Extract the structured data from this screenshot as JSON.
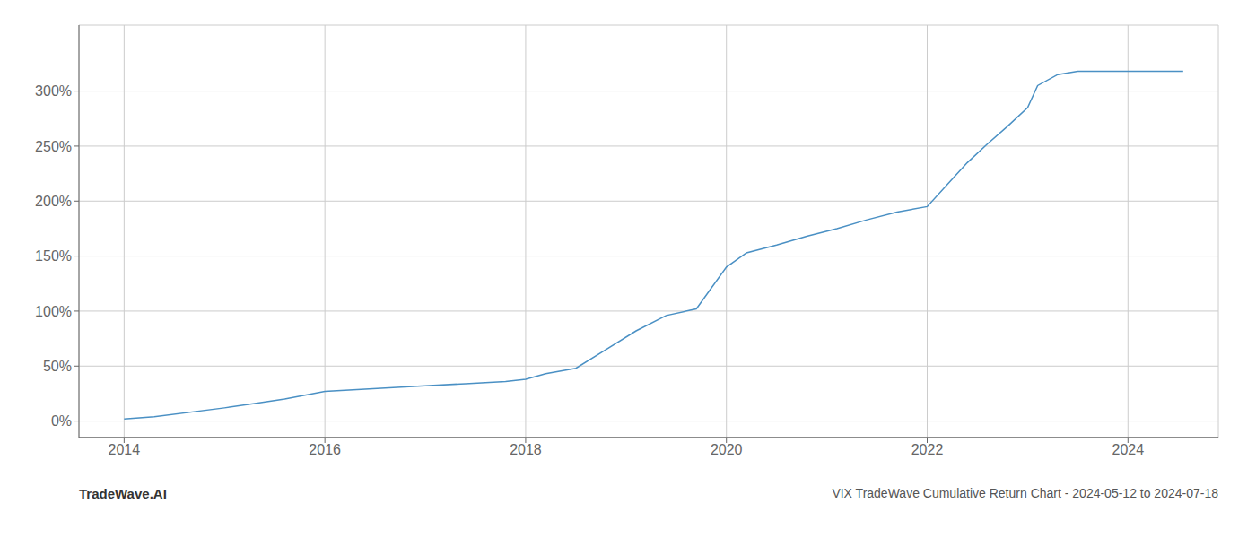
{
  "chart_data": {
    "type": "line",
    "title": "VIX TradeWave Cumulative Return Chart - 2024-05-12 to 2024-07-18",
    "annotations": [
      "TradeWave.AI"
    ],
    "x": [
      2014.0,
      2014.3,
      2015.0,
      2015.3,
      2015.6,
      2016.0,
      2016.4,
      2016.8,
      2017.0,
      2017.4,
      2017.8,
      2018.0,
      2018.2,
      2018.5,
      2018.8,
      2019.1,
      2019.4,
      2019.7,
      2020.0,
      2020.2,
      2020.5,
      2020.8,
      2021.1,
      2021.4,
      2021.7,
      2022.0,
      2022.2,
      2022.4,
      2022.6,
      2022.8,
      2023.0,
      2023.1,
      2023.3,
      2023.5,
      2024.0,
      2024.55
    ],
    "values": [
      2,
      4,
      12,
      16,
      20,
      27,
      29,
      31,
      32,
      34,
      36,
      38,
      43,
      48,
      65,
      82,
      96,
      102,
      140,
      153,
      160,
      168,
      175,
      183,
      190,
      195,
      215,
      235,
      252,
      268,
      285,
      305,
      315,
      318,
      318,
      318
    ],
    "color": "#4a90c4",
    "xlim": [
      2013.55,
      2024.9
    ],
    "ylim": [
      -15,
      360
    ],
    "xticks": [
      2014,
      2016,
      2018,
      2020,
      2022,
      2024
    ],
    "yticks": [
      {
        "value": 0,
        "label": "0%"
      },
      {
        "value": 50,
        "label": "50%"
      },
      {
        "value": 100,
        "label": "100%"
      },
      {
        "value": 150,
        "label": "150%"
      },
      {
        "value": 200,
        "label": "200%"
      },
      {
        "value": 250,
        "label": "250%"
      },
      {
        "value": 300,
        "label": "300%"
      }
    ],
    "grid": true
  }
}
